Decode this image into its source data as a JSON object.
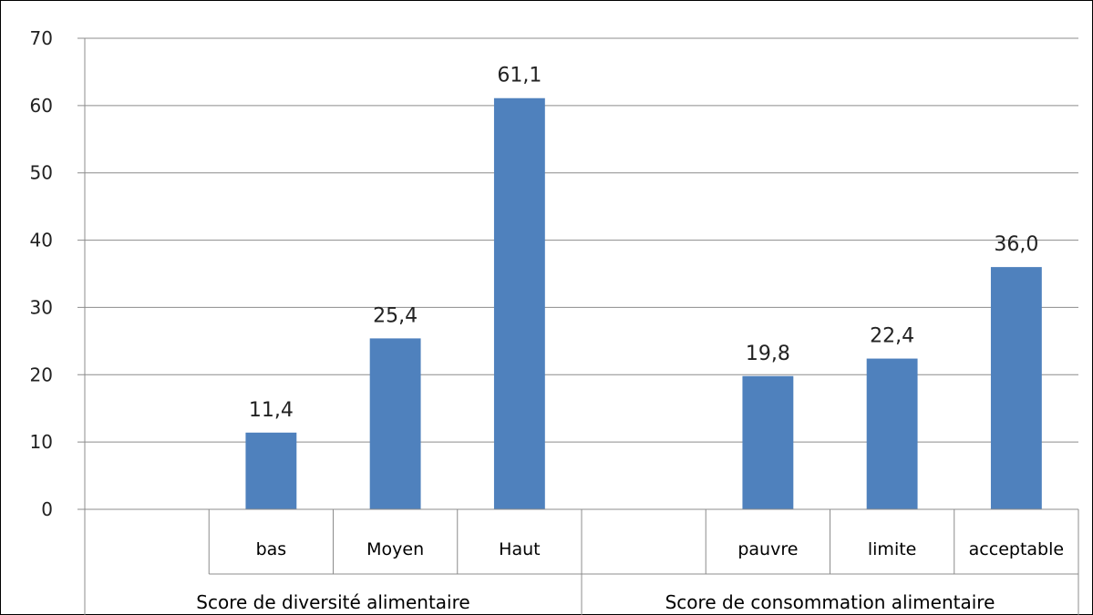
{
  "chart_data": {
    "type": "bar",
    "title": "",
    "xlabel": "",
    "ylabel": "",
    "ylim": [
      0,
      70
    ],
    "yticks": [
      "0",
      "10",
      "20",
      "30",
      "40",
      "50",
      "60",
      "70"
    ],
    "grid": true,
    "legend": "none",
    "bar_color": "#4F81BD",
    "groups": [
      {
        "label": "Score de diversité alimentaire",
        "categories": [
          "",
          "bas",
          "Moyen",
          "Haut"
        ],
        "values": [
          null,
          11.4,
          25.4,
          61.1
        ],
        "data_labels": [
          "",
          "11,4",
          "25,4",
          "61,1"
        ]
      },
      {
        "label": "Score de consommation alimentaire",
        "categories": [
          "",
          "pauvre",
          "limite",
          "acceptable"
        ],
        "values": [
          null,
          19.8,
          22.4,
          36.0
        ],
        "data_labels": [
          "",
          "19,8",
          "22,4",
          "36,0"
        ]
      }
    ]
  }
}
